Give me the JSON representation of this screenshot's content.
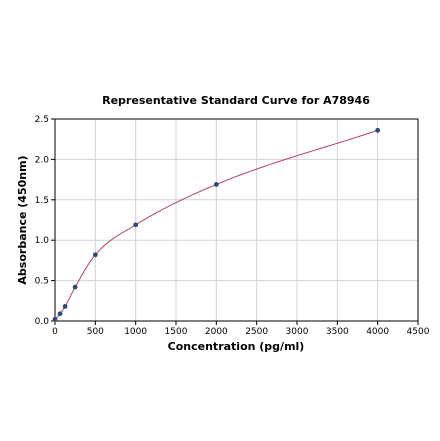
{
  "chart_data": {
    "type": "scatter",
    "title": "Representative Standard Curve for A78946",
    "xlabel": "Concentration (pg/ml)",
    "ylabel": "Absorbance (450nm)",
    "xlim": [
      0,
      4500
    ],
    "ylim": [
      0,
      2.5
    ],
    "x_ticks": [
      "0",
      "500",
      "1000",
      "1500",
      "2000",
      "2500",
      "3000",
      "3500",
      "4000",
      "4500"
    ],
    "y_ticks": [
      "0.0",
      "0.5",
      "1.0",
      "1.5",
      "2.0",
      "2.5"
    ],
    "grid": true,
    "series": [
      {
        "kind": "points",
        "color": "#2e4a7d",
        "x": [
          0,
          62.5,
          125,
          250,
          500,
          1000,
          2000,
          4000
        ],
        "y": [
          0.02,
          0.09,
          0.18,
          0.42,
          0.82,
          1.19,
          1.69,
          2.36
        ]
      },
      {
        "kind": "fitted-curve",
        "color": "#b5475f"
      }
    ]
  }
}
